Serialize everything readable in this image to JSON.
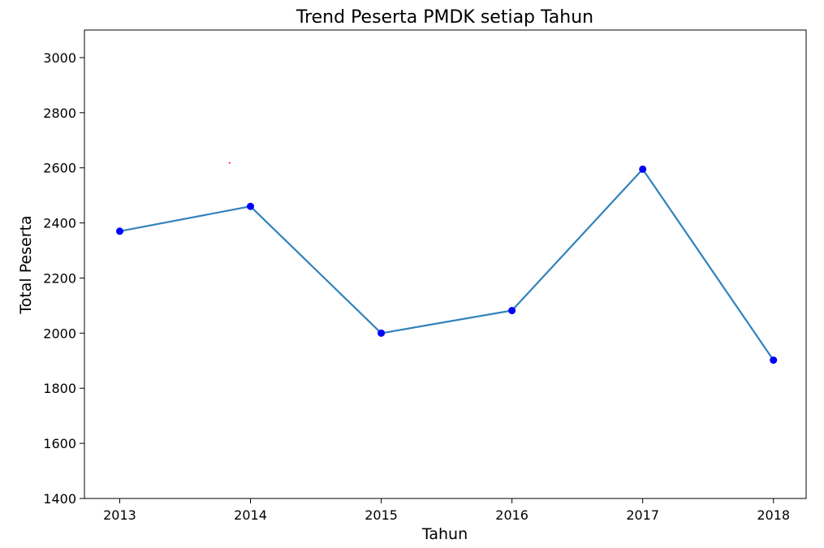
{
  "chart_data": {
    "type": "line",
    "title": "Trend Peserta PMDK setiap Tahun",
    "xlabel": "Tahun",
    "ylabel": "Total Peserta",
    "x": [
      2013,
      2014,
      2015,
      2016,
      2017,
      2018
    ],
    "series": [
      {
        "values": [
          2370,
          2460,
          2000,
          2082,
          2595,
          1902
        ]
      }
    ],
    "xlim": [
      2012.73,
      2018.25
    ],
    "ylim": [
      1400,
      3100
    ],
    "yticks": [
      1400,
      1600,
      1800,
      2000,
      2200,
      2400,
      2600,
      2800,
      3000
    ],
    "xticks": [
      2013,
      2014,
      2015,
      2016,
      2017,
      2018
    ],
    "grid": false,
    "colors": {
      "line": "#3182bd",
      "marker": "#0000ff",
      "accent_dot": "#ff0000"
    },
    "stray_point": {
      "x": 2013.84,
      "y": 2618
    }
  }
}
